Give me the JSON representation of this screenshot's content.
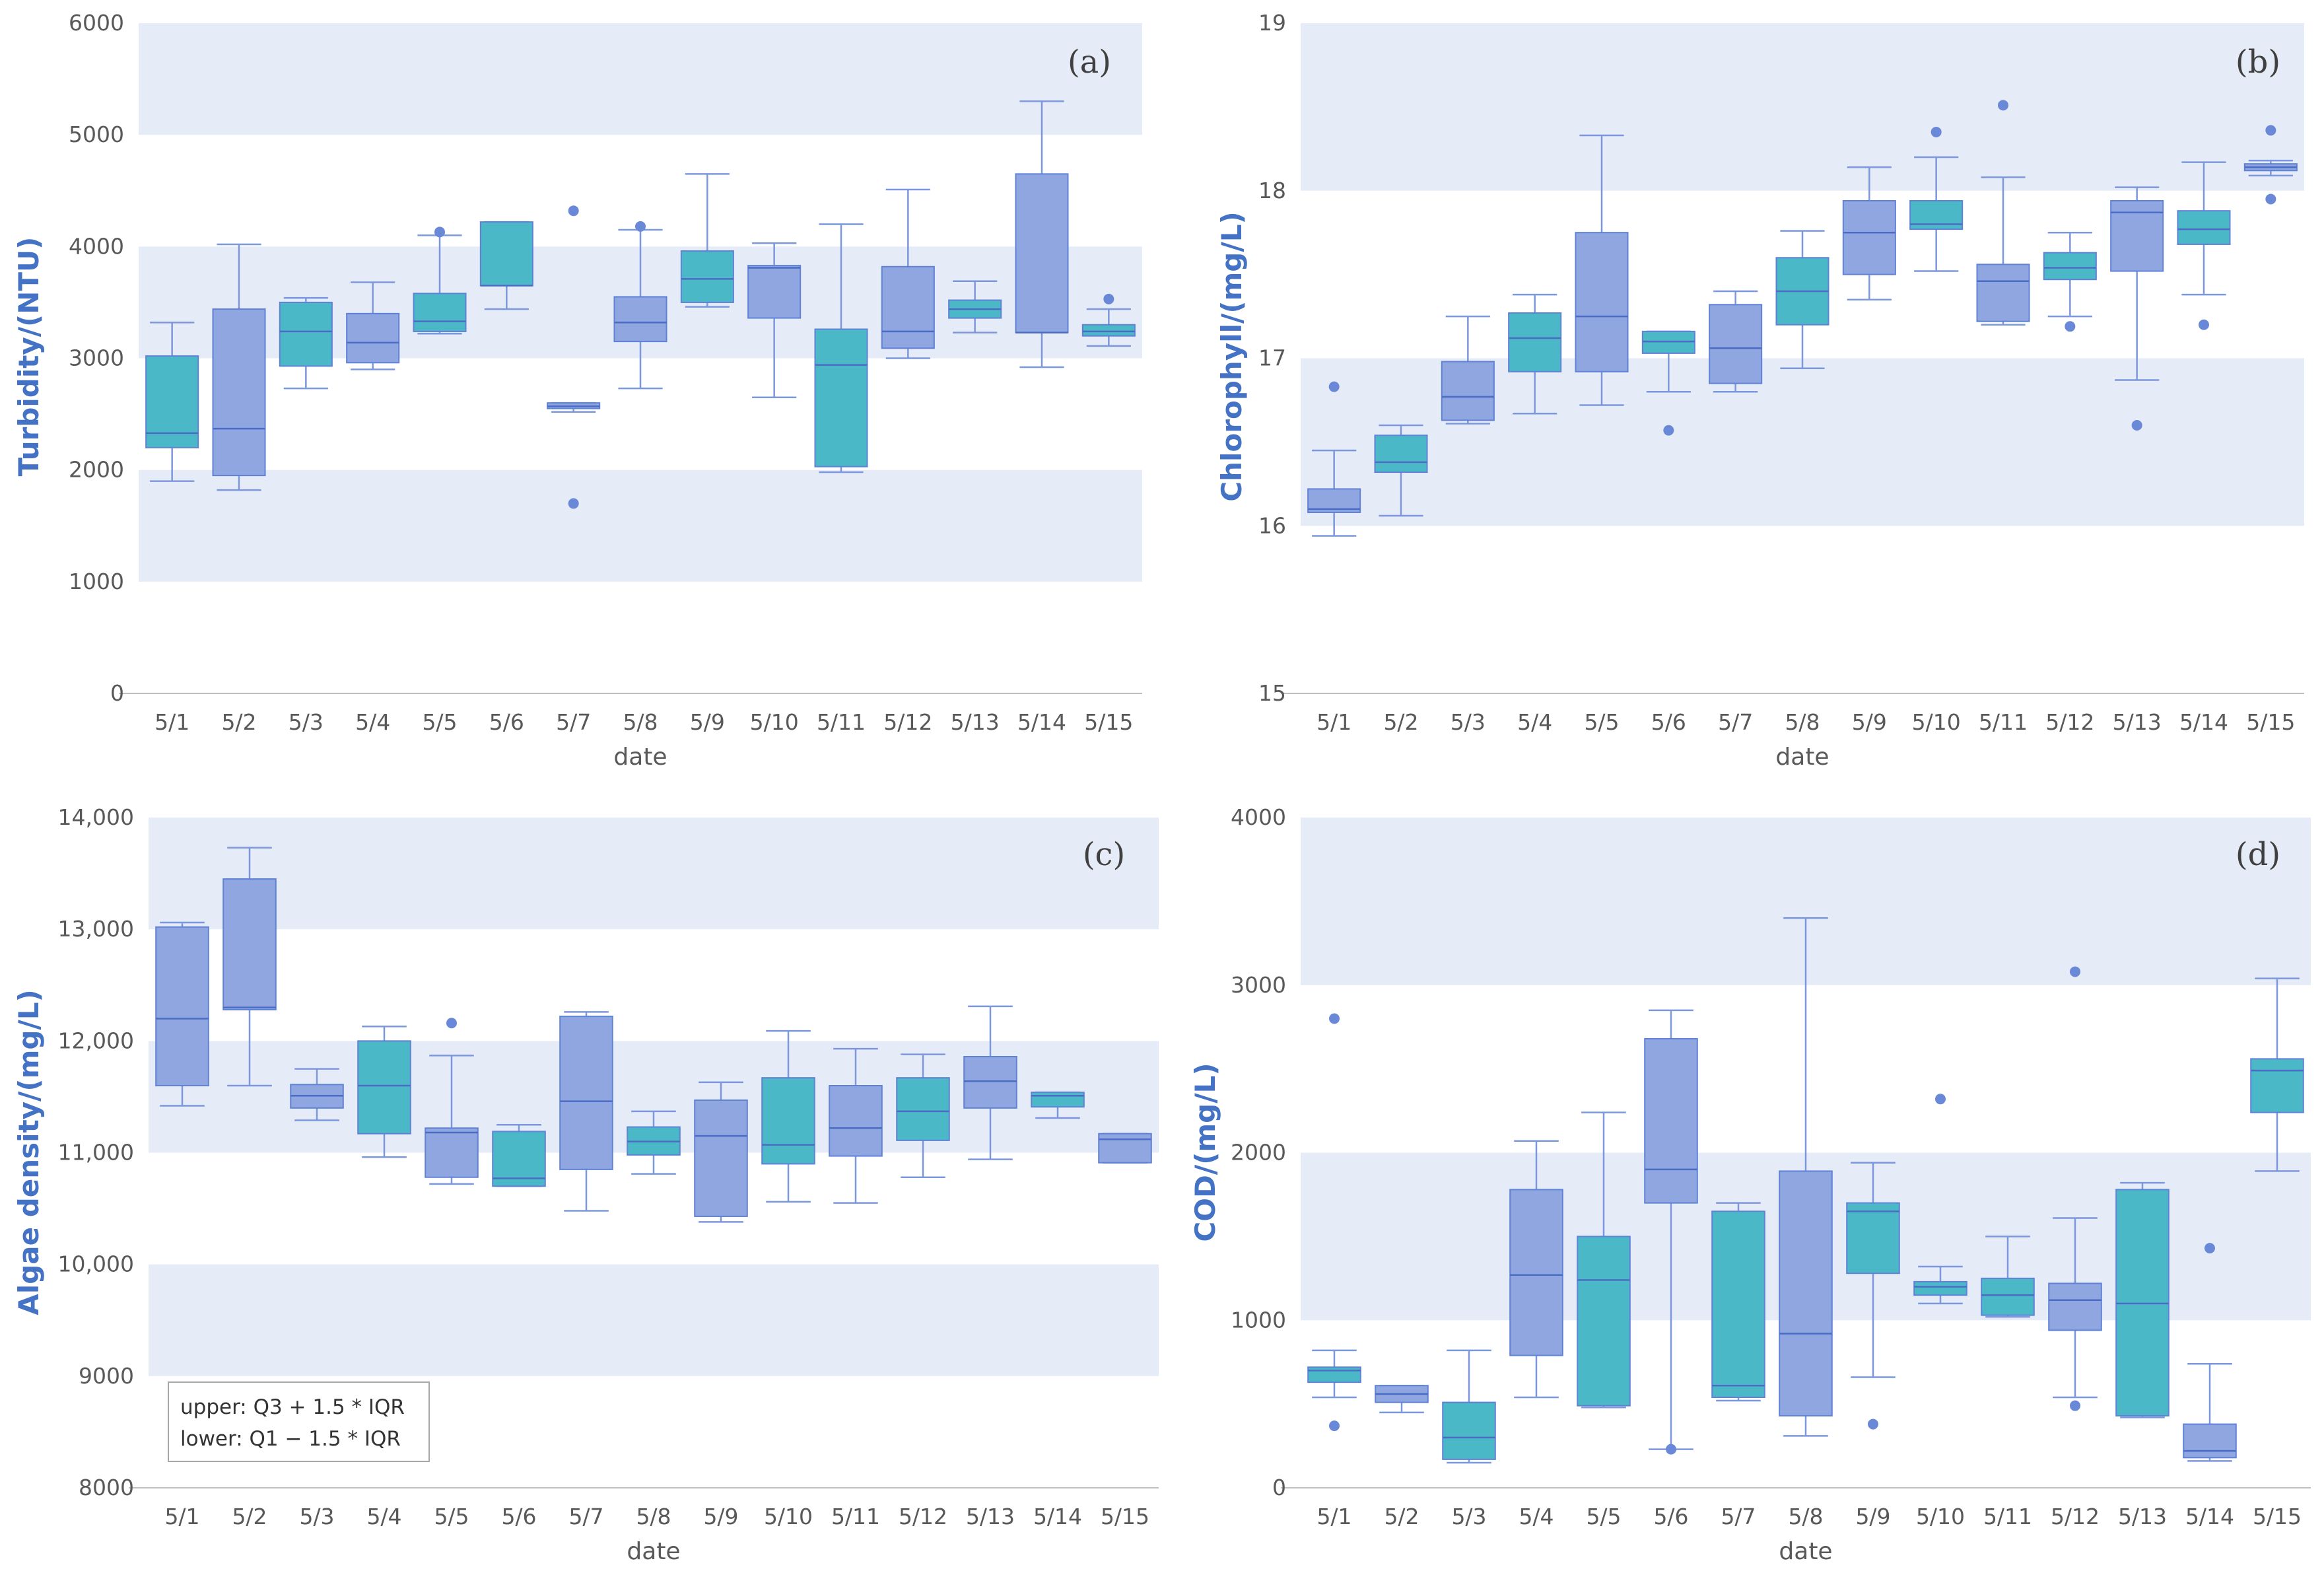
{
  "colors": {
    "blue": "#8fa6e0",
    "teal": "#4bb8c8",
    "band": "#e6ebf8",
    "whisker": "#7c98dd",
    "outlier": "#6a88d8"
  },
  "chart_data": [
    {
      "type": "box",
      "panel_label": "(a)",
      "xlabel": "date",
      "ylabel": "Turbidity/(NTU)",
      "ylim": [
        0,
        6000
      ],
      "yticks": [
        "0",
        "1000",
        "2000",
        "3000",
        "4000",
        "5000",
        "6000"
      ],
      "bands": [
        [
          1000,
          2000
        ],
        [
          3000,
          4000
        ],
        [
          5000,
          6000
        ]
      ],
      "categories": [
        "5/1",
        "5/2",
        "5/3",
        "5/4",
        "5/5",
        "5/6",
        "5/7",
        "5/8",
        "5/9",
        "5/10",
        "5/11",
        "5/12",
        "5/13",
        "5/14",
        "5/15"
      ],
      "boxes": [
        {
          "min": 1900,
          "q1": 2200,
          "median": 2330,
          "q3": 3020,
          "max": 3320,
          "outliers": [],
          "color": "teal"
        },
        {
          "min": 1820,
          "q1": 1950,
          "median": 2370,
          "q3": 3440,
          "max": 4020,
          "outliers": [],
          "color": "blue"
        },
        {
          "min": 2730,
          "q1": 2930,
          "median": 3240,
          "q3": 3500,
          "max": 3540,
          "outliers": [],
          "color": "teal"
        },
        {
          "min": 2900,
          "q1": 2960,
          "median": 3140,
          "q3": 3400,
          "max": 3680,
          "outliers": [],
          "color": "blue"
        },
        {
          "min": 3220,
          "q1": 3240,
          "median": 3330,
          "q3": 3580,
          "max": 4100,
          "outliers": [
            4130
          ],
          "color": "teal"
        },
        {
          "min": 3440,
          "q1": 3650,
          "median": 3650,
          "q3": 4220,
          "max": 4220,
          "outliers": [],
          "color": "teal"
        },
        {
          "min": 2520,
          "q1": 2550,
          "median": 2570,
          "q3": 2600,
          "max": 2600,
          "outliers": [
            4320,
            1700
          ],
          "color": "blue"
        },
        {
          "min": 2730,
          "q1": 3150,
          "median": 3320,
          "q3": 3550,
          "max": 4150,
          "outliers": [
            4180
          ],
          "color": "blue"
        },
        {
          "min": 3460,
          "q1": 3500,
          "median": 3710,
          "q3": 3960,
          "max": 4650,
          "outliers": [],
          "color": "teal"
        },
        {
          "min": 2650,
          "q1": 3360,
          "median": 3810,
          "q3": 3830,
          "max": 4030,
          "outliers": [],
          "color": "blue"
        },
        {
          "min": 1980,
          "q1": 2030,
          "median": 2940,
          "q3": 3260,
          "max": 4200,
          "outliers": [],
          "color": "teal"
        },
        {
          "min": 3000,
          "q1": 3090,
          "median": 3240,
          "q3": 3820,
          "max": 4510,
          "outliers": [],
          "color": "blue"
        },
        {
          "min": 3230,
          "q1": 3360,
          "median": 3440,
          "q3": 3520,
          "max": 3690,
          "outliers": [],
          "color": "teal"
        },
        {
          "min": 2920,
          "q1": 3230,
          "median": 3230,
          "q3": 4650,
          "max": 5300,
          "outliers": [],
          "color": "blue"
        },
        {
          "min": 3110,
          "q1": 3200,
          "median": 3240,
          "q3": 3300,
          "max": 3440,
          "outliers": [
            3530
          ],
          "color": "teal"
        }
      ]
    },
    {
      "type": "box",
      "panel_label": "(b)",
      "xlabel": "date",
      "ylabel": "Chlorophyll/(mg/L)",
      "ylim": [
        15,
        19
      ],
      "yticks": [
        "15",
        "16",
        "17",
        "18",
        "19"
      ],
      "bands": [
        [
          16,
          17
        ],
        [
          18,
          19
        ]
      ],
      "categories": [
        "5/1",
        "5/2",
        "5/3",
        "5/4",
        "5/5",
        "5/6",
        "5/7",
        "5/8",
        "5/9",
        "5/10",
        "5/11",
        "5/12",
        "5/13",
        "5/14",
        "5/15"
      ],
      "boxes": [
        {
          "min": 15.94,
          "q1": 16.08,
          "median": 16.1,
          "q3": 16.22,
          "max": 16.45,
          "outliers": [
            16.83
          ],
          "color": "blue"
        },
        {
          "min": 16.06,
          "q1": 16.32,
          "median": 16.38,
          "q3": 16.54,
          "max": 16.6,
          "outliers": [],
          "color": "teal"
        },
        {
          "min": 16.61,
          "q1": 16.63,
          "median": 16.77,
          "q3": 16.98,
          "max": 17.25,
          "outliers": [],
          "color": "blue"
        },
        {
          "min": 16.67,
          "q1": 16.92,
          "median": 17.12,
          "q3": 17.27,
          "max": 17.38,
          "outliers": [],
          "color": "teal"
        },
        {
          "min": 16.72,
          "q1": 16.92,
          "median": 17.25,
          "q3": 17.75,
          "max": 18.33,
          "outliers": [],
          "color": "blue"
        },
        {
          "min": 16.8,
          "q1": 17.03,
          "median": 17.1,
          "q3": 17.16,
          "max": 17.16,
          "outliers": [
            16.57
          ],
          "color": "teal"
        },
        {
          "min": 16.8,
          "q1": 16.85,
          "median": 17.06,
          "q3": 17.32,
          "max": 17.4,
          "outliers": [],
          "color": "blue"
        },
        {
          "min": 16.94,
          "q1": 17.2,
          "median": 17.4,
          "q3": 17.6,
          "max": 17.76,
          "outliers": [],
          "color": "teal"
        },
        {
          "min": 17.35,
          "q1": 17.5,
          "median": 17.75,
          "q3": 17.94,
          "max": 18.14,
          "outliers": [],
          "color": "blue"
        },
        {
          "min": 17.52,
          "q1": 17.77,
          "median": 17.8,
          "q3": 17.94,
          "max": 18.2,
          "outliers": [
            18.35
          ],
          "color": "teal"
        },
        {
          "min": 17.2,
          "q1": 17.22,
          "median": 17.46,
          "q3": 17.56,
          "max": 18.08,
          "outliers": [
            18.51
          ],
          "color": "blue"
        },
        {
          "min": 17.25,
          "q1": 17.47,
          "median": 17.54,
          "q3": 17.63,
          "max": 17.75,
          "outliers": [
            17.19
          ],
          "color": "teal"
        },
        {
          "min": 16.87,
          "q1": 17.52,
          "median": 17.87,
          "q3": 17.94,
          "max": 18.02,
          "outliers": [
            16.6
          ],
          "color": "blue"
        },
        {
          "min": 17.38,
          "q1": 17.68,
          "median": 17.77,
          "q3": 17.88,
          "max": 18.17,
          "outliers": [
            17.2
          ],
          "color": "teal"
        },
        {
          "min": 18.09,
          "q1": 18.12,
          "median": 18.14,
          "q3": 18.16,
          "max": 18.18,
          "outliers": [
            18.36,
            17.95
          ],
          "color": "blue"
        }
      ]
    },
    {
      "type": "box",
      "panel_label": "(c)",
      "xlabel": "date",
      "ylabel": "Algae density/(mg/L)",
      "ylim": [
        8000,
        14000
      ],
      "yticks": [
        "8000",
        "9000",
        "10,000",
        "11,000",
        "12,000",
        "13,000",
        "14,000"
      ],
      "bands": [
        [
          9000,
          10000
        ],
        [
          11000,
          12000
        ],
        [
          13000,
          14000
        ]
      ],
      "categories": [
        "5/1",
        "5/2",
        "5/3",
        "5/4",
        "5/5",
        "5/6",
        "5/7",
        "5/8",
        "5/9",
        "5/10",
        "5/11",
        "5/12",
        "5/13",
        "5/14",
        "5/15"
      ],
      "legend": {
        "lines": [
          "upper: Q3 + 1.5 * IQR",
          "lower: Q1 − 1.5 * IQR"
        ],
        "position": "bottom-left"
      },
      "boxes": [
        {
          "min": 11420,
          "q1": 11600,
          "median": 12200,
          "q3": 13020,
          "max": 13060,
          "outliers": [],
          "color": "blue"
        },
        {
          "min": 11600,
          "q1": 12280,
          "median": 12300,
          "q3": 13450,
          "max": 13730,
          "outliers": [],
          "color": "blue"
        },
        {
          "min": 11290,
          "q1": 11400,
          "median": 11510,
          "q3": 11610,
          "max": 11750,
          "outliers": [],
          "color": "blue"
        },
        {
          "min": 10960,
          "q1": 11170,
          "median": 11600,
          "q3": 12000,
          "max": 12130,
          "outliers": [],
          "color": "teal"
        },
        {
          "min": 10720,
          "q1": 10780,
          "median": 11180,
          "q3": 11220,
          "max": 11870,
          "outliers": [
            12160
          ],
          "color": "blue"
        },
        {
          "min": 10700,
          "q1": 10700,
          "median": 10770,
          "q3": 11190,
          "max": 11250,
          "outliers": [],
          "color": "teal"
        },
        {
          "min": 10480,
          "q1": 10850,
          "median": 11460,
          "q3": 12220,
          "max": 12260,
          "outliers": [],
          "color": "blue"
        },
        {
          "min": 10810,
          "q1": 10980,
          "median": 11100,
          "q3": 11230,
          "max": 11370,
          "outliers": [],
          "color": "teal"
        },
        {
          "min": 10380,
          "q1": 10430,
          "median": 11150,
          "q3": 11470,
          "max": 11630,
          "outliers": [],
          "color": "blue"
        },
        {
          "min": 10560,
          "q1": 10900,
          "median": 11070,
          "q3": 11670,
          "max": 12090,
          "outliers": [],
          "color": "teal"
        },
        {
          "min": 10550,
          "q1": 10970,
          "median": 11220,
          "q3": 11600,
          "max": 11930,
          "outliers": [],
          "color": "blue"
        },
        {
          "min": 10780,
          "q1": 11110,
          "median": 11370,
          "q3": 11670,
          "max": 11880,
          "outliers": [],
          "color": "teal"
        },
        {
          "min": 10940,
          "q1": 11400,
          "median": 11640,
          "q3": 11860,
          "max": 12310,
          "outliers": [],
          "color": "blue"
        },
        {
          "min": 11310,
          "q1": 11410,
          "median": 11510,
          "q3": 11540,
          "max": 11540,
          "outliers": [],
          "color": "teal"
        },
        {
          "min": 10910,
          "q1": 10910,
          "median": 11120,
          "q3": 11170,
          "max": 11170,
          "outliers": [],
          "color": "blue"
        }
      ]
    },
    {
      "type": "box",
      "panel_label": "(d)",
      "xlabel": "date",
      "ylabel": "COD/(mg/L)",
      "ylim": [
        0,
        4000
      ],
      "yticks": [
        "0",
        "1000",
        "2000",
        "3000",
        "4000"
      ],
      "bands": [
        [
          1000,
          2000
        ],
        [
          3000,
          4000
        ]
      ],
      "categories": [
        "5/1",
        "5/2",
        "5/3",
        "5/4",
        "5/5",
        "5/6",
        "5/7",
        "5/8",
        "5/9",
        "5/10",
        "5/11",
        "5/12",
        "5/13",
        "5/14",
        "5/15"
      ],
      "boxes": [
        {
          "min": 540,
          "q1": 630,
          "median": 700,
          "q3": 720,
          "max": 820,
          "outliers": [
            2800,
            370
          ],
          "color": "teal"
        },
        {
          "min": 450,
          "q1": 510,
          "median": 560,
          "q3": 610,
          "max": 610,
          "outliers": [],
          "color": "blue"
        },
        {
          "min": 150,
          "q1": 170,
          "median": 300,
          "q3": 510,
          "max": 820,
          "outliers": [],
          "color": "teal"
        },
        {
          "min": 540,
          "q1": 790,
          "median": 1270,
          "q3": 1780,
          "max": 2070,
          "outliers": [],
          "color": "blue"
        },
        {
          "min": 480,
          "q1": 490,
          "median": 1240,
          "q3": 1500,
          "max": 2240,
          "outliers": [],
          "color": "teal"
        },
        {
          "min": 230,
          "q1": 1700,
          "median": 1900,
          "q3": 2680,
          "max": 2850,
          "outliers": [
            230
          ],
          "color": "blue"
        },
        {
          "min": 520,
          "q1": 540,
          "median": 610,
          "q3": 1650,
          "max": 1700,
          "outliers": [],
          "color": "teal"
        },
        {
          "min": 310,
          "q1": 430,
          "median": 920,
          "q3": 1890,
          "max": 3400,
          "outliers": [],
          "color": "blue"
        },
        {
          "min": 660,
          "q1": 1280,
          "median": 1650,
          "q3": 1700,
          "max": 1940,
          "outliers": [
            380
          ],
          "color": "teal"
        },
        {
          "min": 1100,
          "q1": 1150,
          "median": 1200,
          "q3": 1230,
          "max": 1320,
          "outliers": [
            2320
          ],
          "color": "teal"
        },
        {
          "min": 1020,
          "q1": 1030,
          "median": 1150,
          "q3": 1250,
          "max": 1500,
          "outliers": [],
          "color": "teal"
        },
        {
          "min": 540,
          "q1": 940,
          "median": 1120,
          "q3": 1220,
          "max": 1610,
          "outliers": [
            3080,
            490
          ],
          "color": "blue"
        },
        {
          "min": 420,
          "q1": 430,
          "median": 1100,
          "q3": 1780,
          "max": 1820,
          "outliers": [],
          "color": "teal"
        },
        {
          "min": 160,
          "q1": 180,
          "median": 220,
          "q3": 380,
          "max": 740,
          "outliers": [
            1430
          ],
          "color": "blue"
        },
        {
          "min": 1890,
          "q1": 2240,
          "median": 2490,
          "q3": 2560,
          "max": 3040,
          "outliers": [],
          "color": "teal"
        }
      ]
    }
  ]
}
